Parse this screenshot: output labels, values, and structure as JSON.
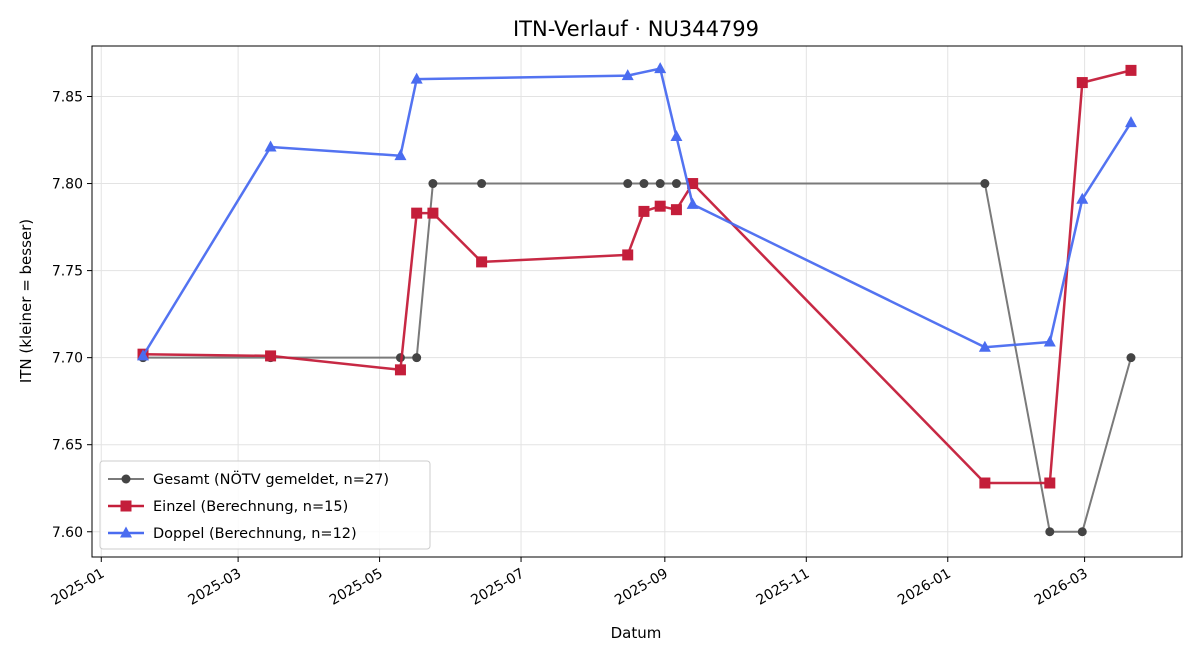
{
  "chart_data": {
    "type": "line",
    "title": "ITN-Verlauf · NU344799",
    "xlabel": "Datum",
    "ylabel": "ITN  (kleiner = besser)",
    "x_type": "date",
    "xlim": [
      "2024-12-28",
      "2026-04-12"
    ],
    "ylim": [
      7.5855,
      7.879
    ],
    "x_ticks": [
      "2025-01-01",
      "2025-03-01",
      "2025-05-01",
      "2025-07-01",
      "2025-09-01",
      "2025-11-01",
      "2026-01-01",
      "2026-03-01"
    ],
    "x_tick_labels": [
      "2025-01",
      "2025-03",
      "2025-05",
      "2025-07",
      "2025-09",
      "2025-11",
      "2026-01",
      "2026-03"
    ],
    "y_ticks": [
      7.6,
      7.65,
      7.7,
      7.75,
      7.8,
      7.85
    ],
    "y_tick_labels": [
      "7.60",
      "7.65",
      "7.70",
      "7.75",
      "7.80",
      "7.85"
    ],
    "grid": true,
    "legend_position": "lower-left",
    "series": [
      {
        "name": "Gesamt (NÖTV gemeldet, n=27)",
        "color": "#7a7a7a",
        "marker": "circle",
        "marker_color": "#444444",
        "points": [
          {
            "x": "2025-01-19",
            "y": 7.7
          },
          {
            "x": "2025-03-15",
            "y": 7.7
          },
          {
            "x": "2025-05-10",
            "y": 7.7
          },
          {
            "x": "2025-05-17",
            "y": 7.7
          },
          {
            "x": "2025-05-24",
            "y": 7.8
          },
          {
            "x": "2025-06-14",
            "y": 7.8
          },
          {
            "x": "2025-08-16",
            "y": 7.8
          },
          {
            "x": "2025-08-23",
            "y": 7.8
          },
          {
            "x": "2025-08-30",
            "y": 7.8
          },
          {
            "x": "2025-09-06",
            "y": 7.8
          },
          {
            "x": "2025-09-13",
            "y": 7.8
          },
          {
            "x": "2026-01-17",
            "y": 7.8
          },
          {
            "x": "2026-02-14",
            "y": 7.6
          },
          {
            "x": "2026-02-28",
            "y": 7.6
          },
          {
            "x": "2026-03-21",
            "y": 7.7
          }
        ]
      },
      {
        "name": "Einzel (Berechnung, n=15)",
        "color": "#c41e3a",
        "marker": "square",
        "marker_color": "#c41e3a",
        "points": [
          {
            "x": "2025-01-19",
            "y": 7.702
          },
          {
            "x": "2025-03-15",
            "y": 7.701
          },
          {
            "x": "2025-05-10",
            "y": 7.693
          },
          {
            "x": "2025-05-17",
            "y": 7.783
          },
          {
            "x": "2025-05-24",
            "y": 7.783
          },
          {
            "x": "2025-06-14",
            "y": 7.755
          },
          {
            "x": "2025-08-16",
            "y": 7.759
          },
          {
            "x": "2025-08-23",
            "y": 7.784
          },
          {
            "x": "2025-08-30",
            "y": 7.787
          },
          {
            "x": "2025-09-06",
            "y": 7.785
          },
          {
            "x": "2025-09-13",
            "y": 7.8
          },
          {
            "x": "2026-01-17",
            "y": 7.628
          },
          {
            "x": "2026-02-14",
            "y": 7.628
          },
          {
            "x": "2026-02-28",
            "y": 7.858
          },
          {
            "x": "2026-03-21",
            "y": 7.865
          }
        ]
      },
      {
        "name": "Doppel (Berechnung, n=12)",
        "color": "#4a6cf0",
        "marker": "triangle",
        "marker_color": "#4a6cf0",
        "points": [
          {
            "x": "2025-01-19",
            "y": 7.701
          },
          {
            "x": "2025-03-15",
            "y": 7.821
          },
          {
            "x": "2025-05-10",
            "y": 7.816
          },
          {
            "x": "2025-05-17",
            "y": 7.86
          },
          {
            "x": "2025-08-16",
            "y": 7.862
          },
          {
            "x": "2025-08-30",
            "y": 7.866
          },
          {
            "x": "2025-09-06",
            "y": 7.827
          },
          {
            "x": "2025-09-13",
            "y": 7.788
          },
          {
            "x": "2026-01-17",
            "y": 7.706
          },
          {
            "x": "2026-02-14",
            "y": 7.709
          },
          {
            "x": "2026-02-28",
            "y": 7.791
          },
          {
            "x": "2026-03-21",
            "y": 7.835
          }
        ]
      }
    ]
  }
}
